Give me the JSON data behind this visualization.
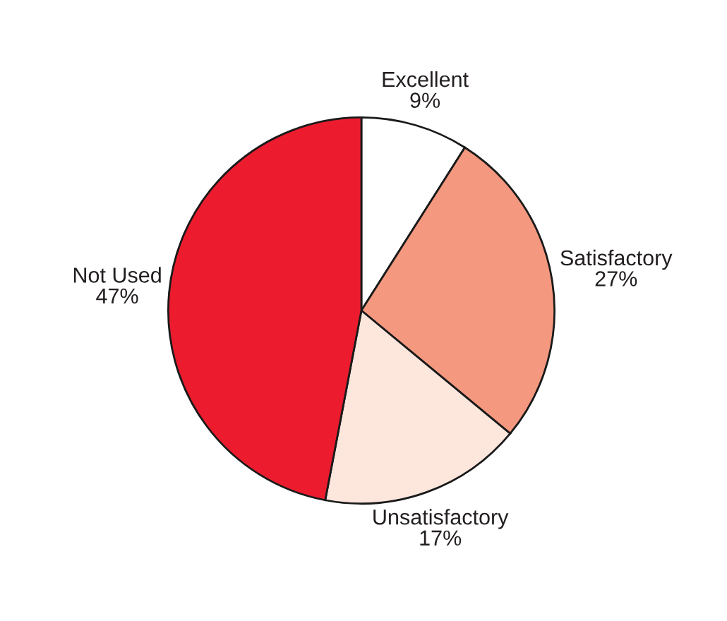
{
  "chart_data": {
    "type": "pie",
    "categories": [
      "Excellent",
      "Satisfactory",
      "Unsatisfactory",
      "Not Used"
    ],
    "values": [
      9,
      27,
      17,
      47
    ],
    "colors": [
      "#ffffff",
      "#f4987f",
      "#fde6dc",
      "#ec1c2e"
    ],
    "value_labels": [
      "9%",
      "27%",
      "17%",
      "47%"
    ]
  }
}
